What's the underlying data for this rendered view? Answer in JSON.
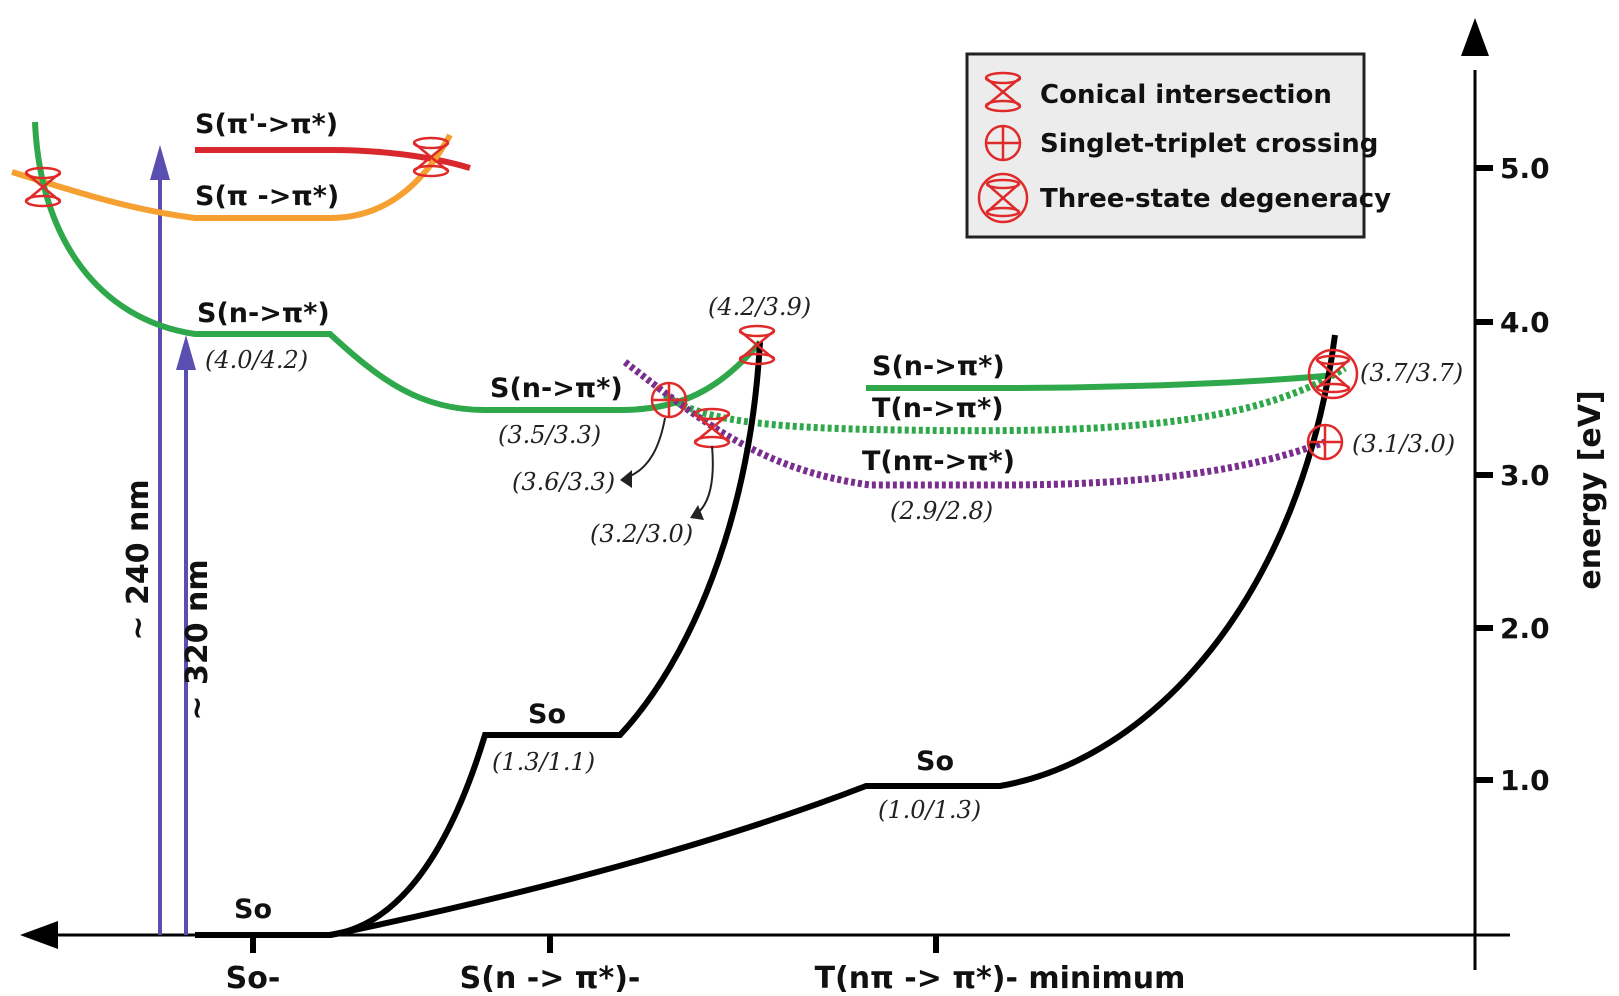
{
  "legend": {
    "conical": "Conical intersection",
    "singlet_triplet": "Singlet-triplet crossing",
    "three_state": "Three-state degeneracy"
  },
  "axis": {
    "y_label": "energy  [eV]",
    "y_ticks": [
      "1.0",
      "2.0",
      "3.0",
      "4.0",
      "5.0"
    ],
    "x_ticks": [
      "So-",
      "S(n -> π*)-",
      "T(nπ -> π*)- minimum"
    ]
  },
  "excitations": {
    "e240": "~ 240 nm",
    "e320": "~ 320 nm"
  },
  "states": {
    "s_pipi_prime": "S(π'->π*)",
    "s_pipi": "S(π ->π*)",
    "s_npi_1": "S(n->π*)",
    "s_npi_2": "S(n->π*)",
    "s_npi_3": "S(n->π*)",
    "t_npi": "T(n->π*)",
    "t_npipi": "T(nπ->π*)",
    "so_1": "So",
    "so_2": "So",
    "so_3": "So"
  },
  "values": {
    "v1": "(4.0/4.2)",
    "v2": "(3.5/3.3)",
    "v3": "(4.2/3.9)",
    "v4": "(3.6/3.3)",
    "v5": "(3.2/3.0)",
    "v6": "(3.7/3.7)",
    "v7": "(3.1/3.0)",
    "v8": "(2.9/2.8)",
    "v9": "(1.3/1.1)",
    "v10": "(1.0/1.3)"
  },
  "colors": {
    "green": "#2ea84a",
    "orange": "#f5a030",
    "red": "#d8282e",
    "purple": "#7a2e8e",
    "blue": "#5a4fb0",
    "marker": "#e02a2a"
  }
}
